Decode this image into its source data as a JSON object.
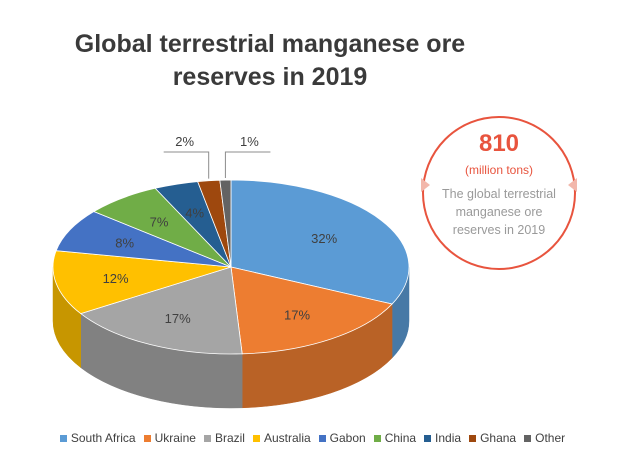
{
  "chart_data": {
    "type": "pie",
    "title": "Global terrestrial manganese ore reserves in 2019",
    "unit": "%",
    "legend_position": "bottom",
    "categories": [
      "South Africa",
      "Ukraine",
      "Brazil",
      "Australia",
      "Gabon",
      "China",
      "India",
      "Ghana",
      "Other"
    ],
    "values": [
      32,
      17,
      17,
      12,
      8,
      7,
      4,
      2,
      1
    ],
    "labels": [
      "32%",
      "17%",
      "17%",
      "12%",
      "8%",
      "7%",
      "4%",
      "2%",
      "1%"
    ],
    "colors": [
      "#5b9bd5",
      "#ed7d31",
      "#a5a5a5",
      "#ffc000",
      "#4472c4",
      "#70ad47",
      "#255e91",
      "#9e480e",
      "#636363"
    ],
    "style": "3d-pie"
  },
  "callout": {
    "value": "810",
    "unit": "(million tons)",
    "description": "The global terrestrial manganese ore reserves in 2019",
    "accent_color": "#e8543e"
  }
}
